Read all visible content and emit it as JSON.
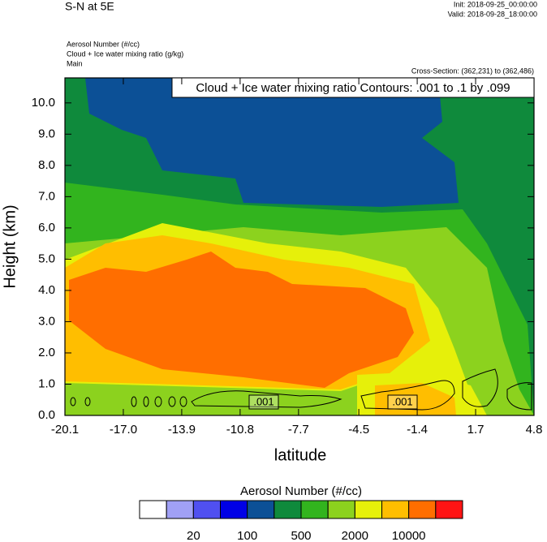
{
  "header": {
    "title": "S-N at 5E",
    "init": "Init: 2018-09-25_00:00:00",
    "valid": "Valid: 2018-09-28_18:00:00",
    "field1": "Aerosol Number   (#/cc)",
    "field2": "Cloud + Ice water mixing ratio   (g/kg)",
    "field3": "Main",
    "cross_section": "Cross-Section: (362,231) to (362,486)"
  },
  "chart_data": {
    "type": "contour",
    "title": "Cloud + Ice water mixing ratio Contours: .001 to .1 by .099",
    "contour_labels": [
      ".001",
      ".001"
    ],
    "x_label": "latitude",
    "y_label": "Height (km)",
    "xlim": [
      -20.1,
      4.8
    ],
    "xticks": [
      -20.1,
      {
        "value": -17,
        "label": "-17.0"
      },
      -13.9,
      -10.8,
      -7.7,
      -4.5,
      -1.4,
      1.7,
      4.8
    ],
    "ylim": [
      0,
      10.8
    ],
    "yticks": [
      {
        "value": 0,
        "label": "0.0"
      },
      {
        "value": 1,
        "label": "1.0"
      },
      {
        "value": 2,
        "label": "2.0"
      },
      {
        "value": 3,
        "label": "3.0"
      },
      {
        "value": 4,
        "label": "4.0"
      },
      {
        "value": 5,
        "label": "5.0"
      },
      {
        "value": 6,
        "label": "6.0"
      },
      {
        "value": 7,
        "label": "7.0"
      },
      {
        "value": 8,
        "label": "8.0"
      },
      {
        "value": 9,
        "label": "9.0"
      },
      {
        "value": 10,
        "label": "10.0"
      }
    ],
    "colorbar": {
      "title": "Aerosol Number  (#/cc)",
      "colors": [
        "#ffffff",
        "#a0a0f5",
        "#5050f0",
        "#0000e6",
        "#0c5096",
        "#0f8a3c",
        "#32b41e",
        "#8cd21e",
        "#e6f00a",
        "#ffbe00",
        "#ff6e00",
        "#ff1414"
      ],
      "ticks": [
        20,
        100,
        500,
        2000,
        10000
      ]
    }
  }
}
